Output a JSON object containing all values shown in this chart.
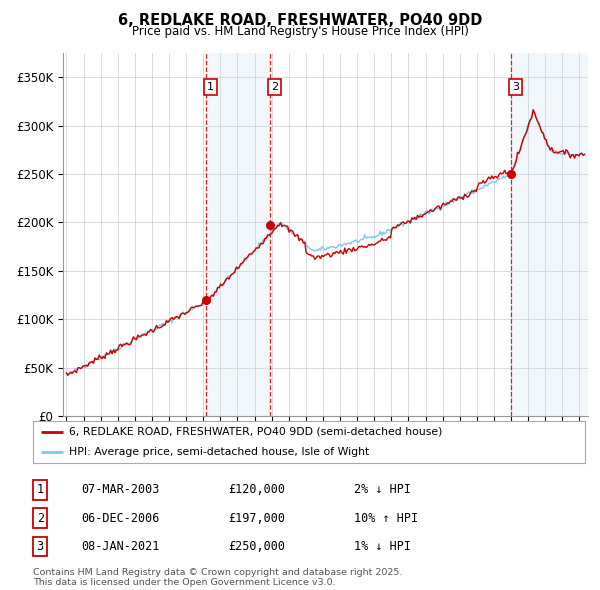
{
  "title": "6, REDLAKE ROAD, FRESHWATER, PO40 9DD",
  "subtitle": "Price paid vs. HM Land Registry's House Price Index (HPI)",
  "yticks": [
    0,
    50000,
    100000,
    150000,
    200000,
    250000,
    300000,
    350000
  ],
  "ytick_labels": [
    "£0",
    "£50K",
    "£100K",
    "£150K",
    "£200K",
    "£250K",
    "£300K",
    "£350K"
  ],
  "xlim_start": 1994.8,
  "xlim_end": 2025.5,
  "ylim": [
    0,
    375000
  ],
  "sale_dates": [
    2003.18,
    2006.92,
    2021.02
  ],
  "sale_prices": [
    120000,
    197000,
    250000
  ],
  "sale_labels": [
    "1",
    "2",
    "3"
  ],
  "hpi_color": "#7ec8e8",
  "price_color": "#cc0000",
  "vline_color": "#cc0000",
  "shade_color": "#cce0f5",
  "legend_entries": [
    "6, REDLAKE ROAD, FRESHWATER, PO40 9DD (semi-detached house)",
    "HPI: Average price, semi-detached house, Isle of Wight"
  ],
  "table_rows": [
    [
      "1",
      "07-MAR-2003",
      "£120,000",
      "2% ↓ HPI"
    ],
    [
      "2",
      "06-DEC-2006",
      "£197,000",
      "10% ↑ HPI"
    ],
    [
      "3",
      "08-JAN-2021",
      "£250,000",
      "1% ↓ HPI"
    ]
  ],
  "footnote": "Contains HM Land Registry data © Crown copyright and database right 2025.\nThis data is licensed under the Open Government Licence v3.0.",
  "background_color": "#ffffff",
  "grid_color": "#cccccc"
}
